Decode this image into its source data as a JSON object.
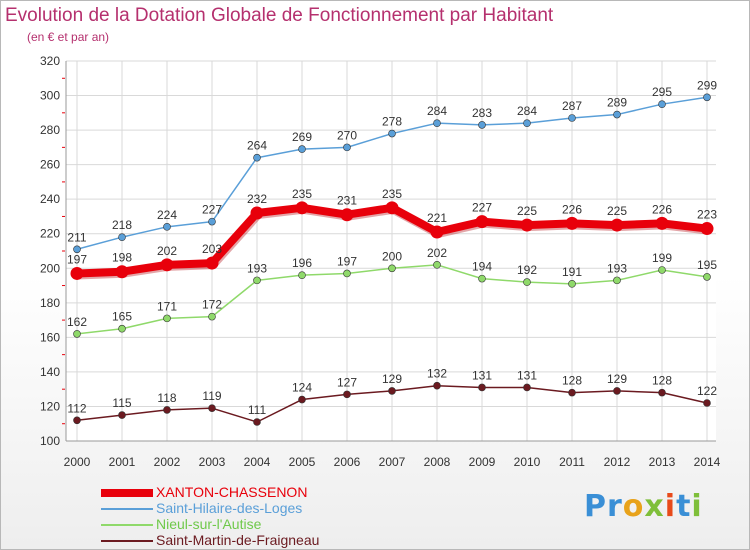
{
  "title": "Evolution de la Dotation Globale de Fonctionnement par Habitant",
  "subtitle": "(en € et par an)",
  "logo": {
    "text": "Proxiti",
    "letter_colors": [
      "#3a8fd6",
      "#3a8fd6",
      "#e8a21a",
      "#7fbf3a",
      "#e84a1a",
      "#3a8fd6",
      "#7fbf3a"
    ]
  },
  "chart_data": {
    "type": "line",
    "x": [
      "2000",
      "2001",
      "2002",
      "2003",
      "2004",
      "2005",
      "2006",
      "2007",
      "2008",
      "2009",
      "2010",
      "2011",
      "2012",
      "2013",
      "2014"
    ],
    "ylim": [
      100,
      320
    ],
    "yticks": [
      "100",
      "120",
      "140",
      "160",
      "180",
      "200",
      "220",
      "240",
      "260",
      "280",
      "300",
      "320"
    ],
    "grid": true,
    "legend_position": "bottom-left",
    "series": [
      {
        "name": "XANTON-CHASSENON",
        "color": "#e8000b",
        "values": [
          197,
          198,
          202,
          203,
          232,
          235,
          231,
          235,
          221,
          227,
          225,
          226,
          225,
          226,
          223
        ],
        "labels": [
          "197",
          "198",
          "202",
          "203",
          "232",
          "235",
          "231",
          "235",
          "221",
          "227",
          "225",
          "226",
          "225",
          "226",
          "223"
        ]
      },
      {
        "name": "Saint-Hilaire-des-Loges",
        "color": "#5a9fd8",
        "values": [
          211,
          218,
          224,
          227,
          264,
          269,
          270,
          278,
          284,
          283,
          284,
          287,
          289,
          295,
          299
        ],
        "labels": [
          "211",
          "218",
          "224",
          "227",
          "264",
          "269",
          "270",
          "278",
          "284",
          "283",
          "284",
          "287",
          "289",
          "295",
          "299"
        ]
      },
      {
        "name": "Nieul-sur-l'Autise",
        "color": "#8fd96a",
        "values": [
          162,
          165,
          171,
          172,
          193,
          196,
          197,
          200,
          202,
          194,
          192,
          191,
          193,
          199,
          195
        ],
        "labels": [
          "162",
          "165",
          "171",
          "172",
          "193",
          "196",
          "197",
          "200",
          "202",
          "194",
          "192",
          "191",
          "193",
          "199",
          "195"
        ]
      },
      {
        "name": "Saint-Martin-de-Fraigneau",
        "color": "#6b1a20",
        "values": [
          112,
          115,
          118,
          119,
          111,
          124,
          127,
          129,
          132,
          131,
          131,
          128,
          129,
          128,
          122
        ],
        "labels": [
          "112",
          "115",
          "118",
          "119",
          "111",
          "124",
          "127",
          "129",
          "132",
          "131",
          "131",
          "128",
          "129",
          "128",
          "122"
        ]
      }
    ]
  }
}
